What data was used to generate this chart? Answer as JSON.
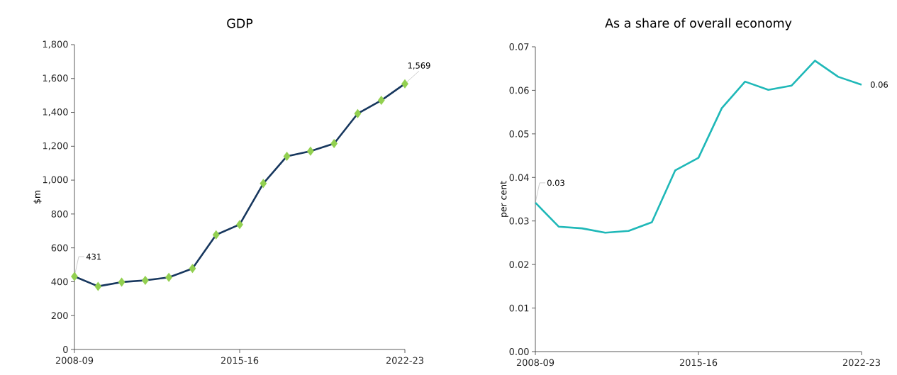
{
  "chart_data": [
    {
      "type": "line",
      "title": "GDP",
      "ylabel": "$m",
      "categories": [
        "2008-09",
        null,
        null,
        null,
        null,
        null,
        null,
        "2015-16",
        null,
        null,
        null,
        null,
        null,
        null,
        "2022-23"
      ],
      "ylim": [
        0,
        1800
      ],
      "yticks": [
        0,
        200,
        400,
        600,
        800,
        {
          "value": 1000,
          "label": "1,000"
        },
        {
          "value": 1200,
          "label": "1,200"
        },
        {
          "value": 1400,
          "label": "1,400"
        },
        {
          "value": 1600,
          "label": "1,600"
        },
        {
          "value": 1800,
          "label": "1,800"
        }
      ],
      "marker": "diamond",
      "series": [
        {
          "color": "#17375e",
          "values": [
            431,
            373,
            398,
            408,
            426,
            478,
            677,
            738,
            980,
            1141,
            1171,
            1216,
            1393,
            1471,
            1569
          ],
          "value_labels": [
            "431",
            null,
            null,
            null,
            null,
            null,
            null,
            null,
            null,
            null,
            null,
            null,
            null,
            null,
            "1,569"
          ]
        }
      ]
    },
    {
      "type": "line",
      "title": "As a share of overall economy",
      "ylabel": "per cent",
      "categories": [
        "2008-09",
        null,
        null,
        null,
        null,
        null,
        null,
        "2015-16",
        null,
        null,
        null,
        null,
        null,
        null,
        "2022-23"
      ],
      "ylim": [
        0,
        0.07
      ],
      "yticks": [
        {
          "value": 0,
          "label": "0.00"
        },
        0.01,
        0.02,
        0.03,
        0.04,
        0.05,
        0.06,
        0.07
      ],
      "series": [
        {
          "color": "#1fb8b8",
          "values": [
            0.0342,
            0.0287,
            0.0283,
            0.0273,
            0.0277,
            0.0297,
            0.0416,
            0.0445,
            0.0559,
            0.062,
            0.0601,
            0.0611,
            0.0668,
            0.0631,
            0.0613
          ],
          "value_labels": [
            "0.03",
            null,
            null,
            null,
            null,
            null,
            null,
            null,
            null,
            null,
            null,
            null,
            null,
            null,
            "0.06"
          ]
        }
      ]
    }
  ]
}
